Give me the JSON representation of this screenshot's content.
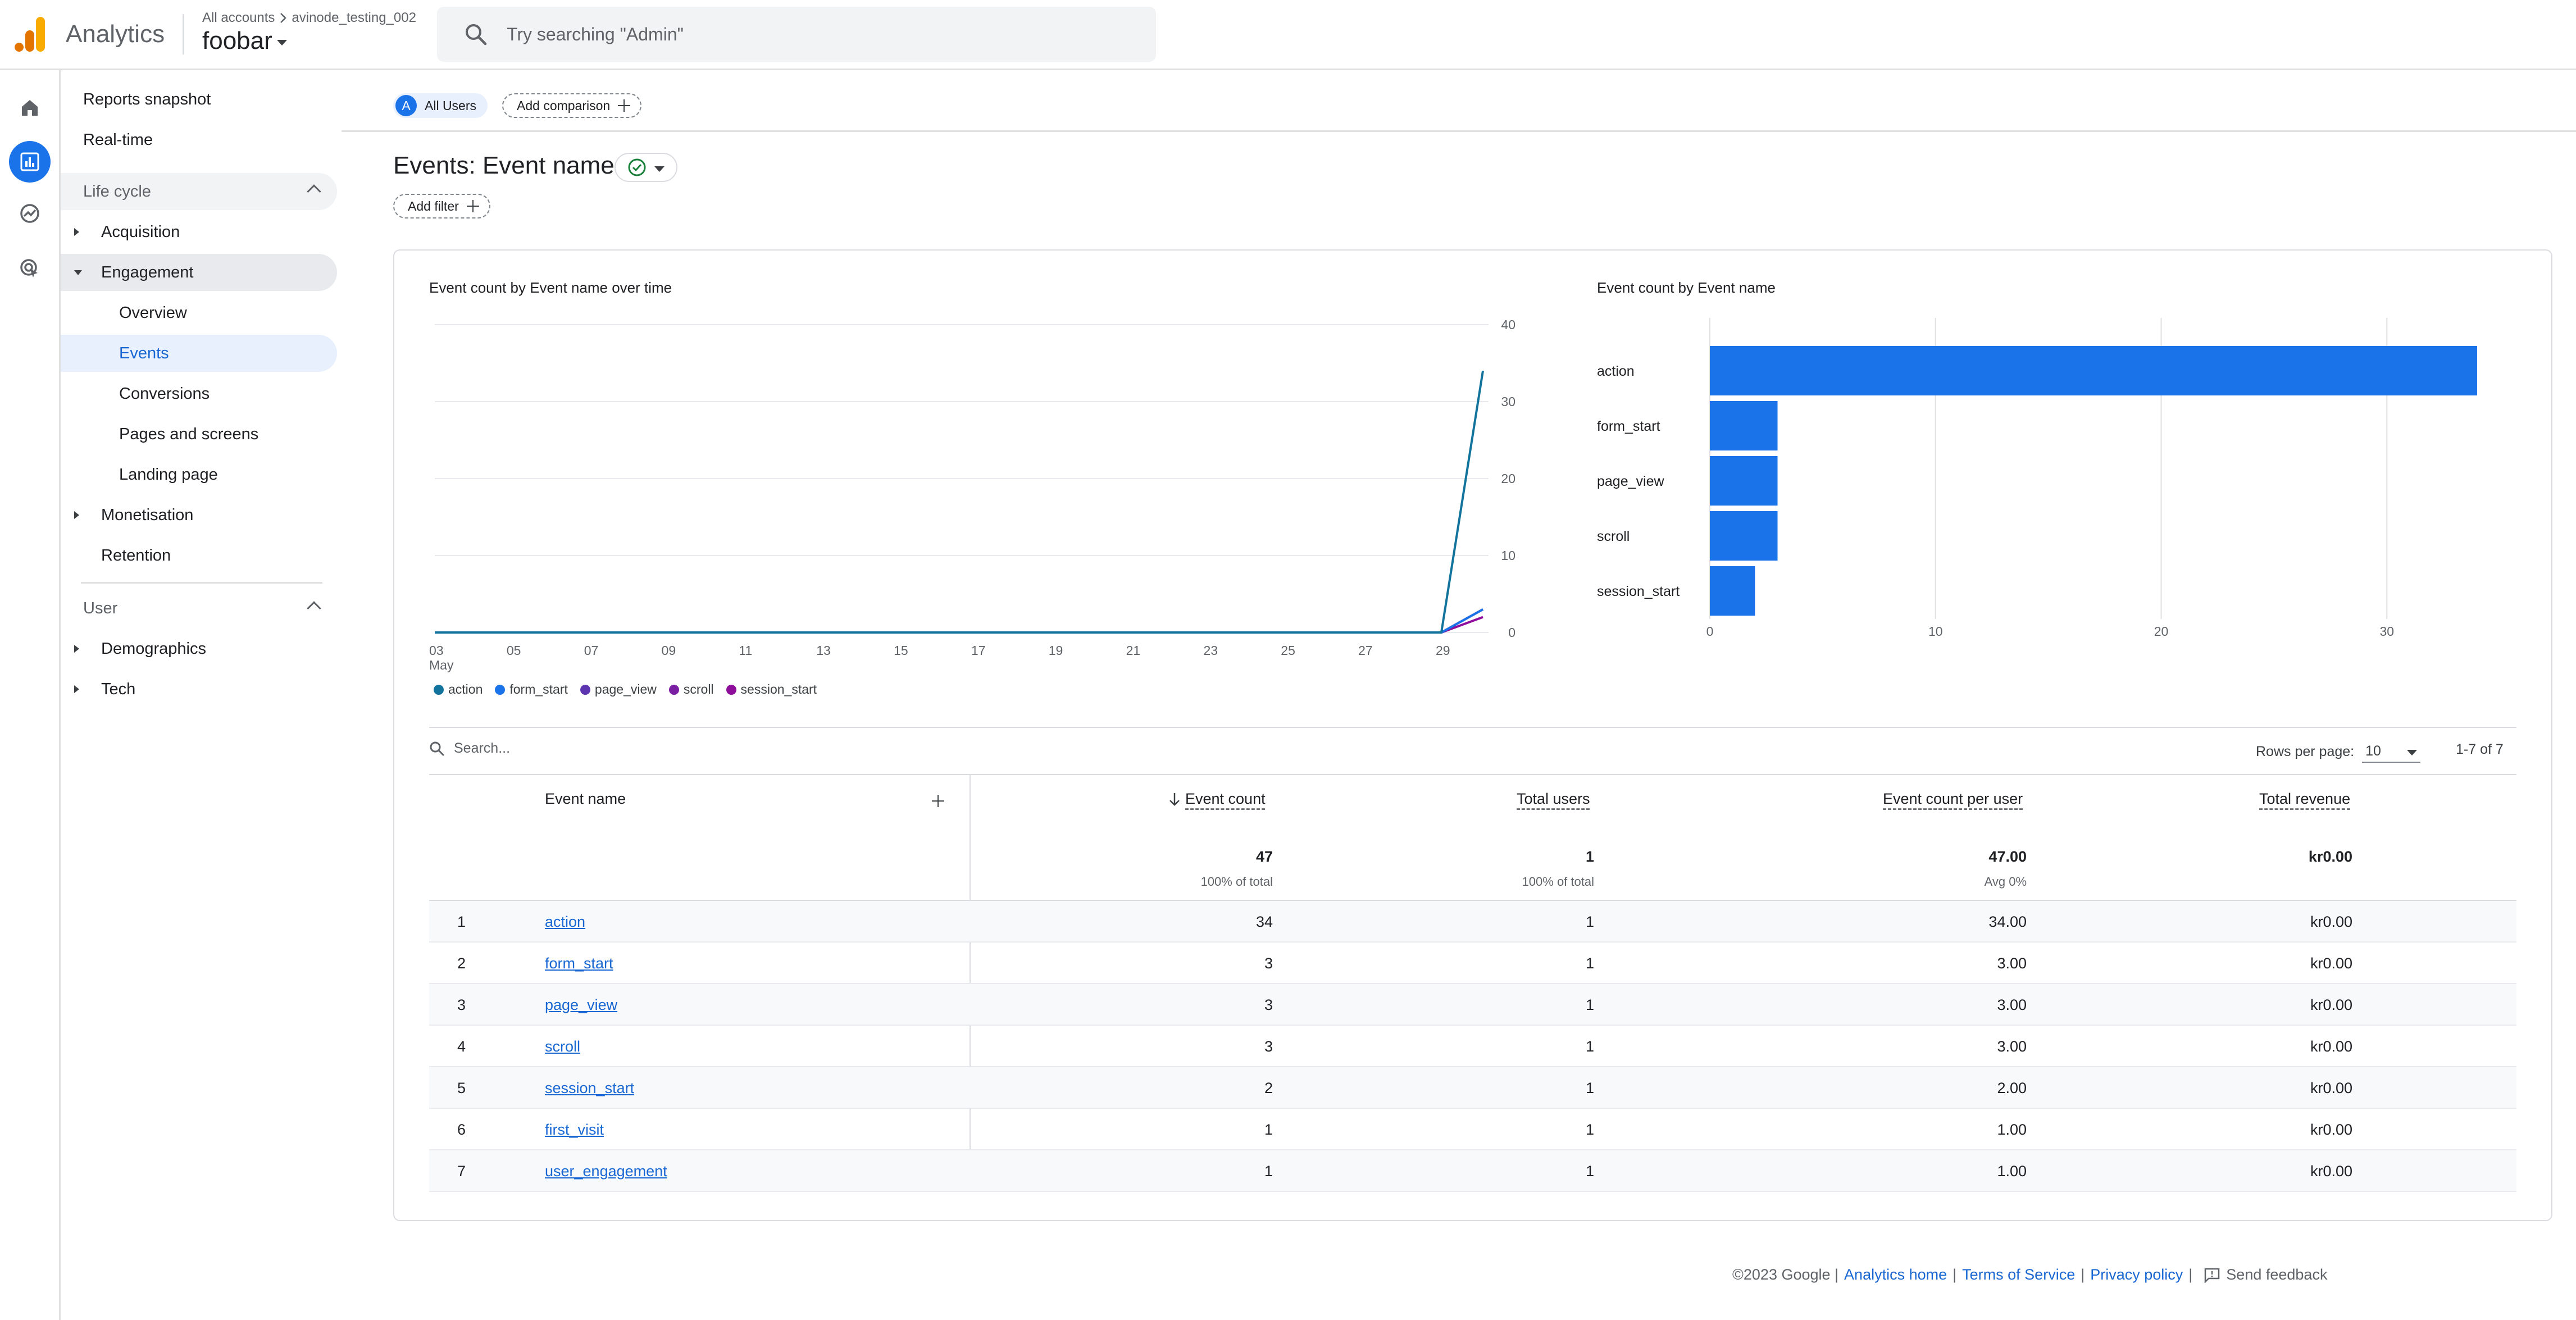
{
  "header": {
    "app_title": "Analytics",
    "crumb_all": "All accounts",
    "crumb_account": "avinode_testing_002",
    "property": "foobar",
    "search_placeholder": "Try searching \"Admin\""
  },
  "rail": [
    "home-icon",
    "reports-icon",
    "explore-icon",
    "advertising-icon"
  ],
  "sidebar": {
    "reports_snapshot": "Reports snapshot",
    "realtime": "Real-time",
    "lifecycle": "Life cycle",
    "acquisition": "Acquisition",
    "engagement": "Engagement",
    "overview": "Overview",
    "events": "Events",
    "conversions": "Conversions",
    "pages_screens": "Pages and screens",
    "landing_page": "Landing page",
    "monetisation": "Monetisation",
    "retention": "Retention",
    "user": "User",
    "demographics": "Demographics",
    "tech": "Tech"
  },
  "comparison": {
    "avatar": "A",
    "all_users": "All Users",
    "add_comparison": "Add comparison"
  },
  "page": {
    "title": "Events: Event name",
    "add_filter": "Add filter"
  },
  "line_chart_title": "Event count by Event name over time",
  "bar_chart_title": "Event count by Event name",
  "chart_data": [
    {
      "type": "line",
      "title": "Event count by Event name over time",
      "x": [
        "03",
        "05",
        "07",
        "09",
        "11",
        "13",
        "15",
        "17",
        "19",
        "21",
        "23",
        "25",
        "27",
        "29"
      ],
      "x_sub": "May",
      "ylim": [
        0,
        40
      ],
      "yticks": [
        0,
        10,
        20,
        30,
        40
      ],
      "series": [
        {
          "name": "action",
          "color": "#12739c",
          "end_value": 34
        },
        {
          "name": "form_start",
          "color": "#1a73e8",
          "end_value": 3
        },
        {
          "name": "page_view",
          "color": "#5e35b1",
          "end_value": 3
        },
        {
          "name": "scroll",
          "color": "#7b1fa2",
          "end_value": 3
        },
        {
          "name": "session_start",
          "color": "#8e0e9b",
          "end_value": 2
        }
      ],
      "grid": true,
      "legend": "bottom-left"
    },
    {
      "type": "bar",
      "orientation": "horizontal",
      "title": "Event count by Event name",
      "categories": [
        "action",
        "form_start",
        "page_view",
        "scroll",
        "session_start"
      ],
      "values": [
        34,
        3,
        3,
        3,
        2
      ],
      "xlim": [
        0,
        34
      ],
      "xticks": [
        0,
        10,
        20,
        30
      ],
      "color": "#1a73e8",
      "grid": true
    }
  ],
  "table": {
    "search_placeholder": "Search...",
    "rows_per_page_label": "Rows per page:",
    "rows_per_page_value": "10",
    "pager": "1-7 of 7",
    "headers": {
      "event_name": "Event name",
      "event_count": "Event count",
      "total_users": "Total users",
      "per_user": "Event count per user",
      "revenue": "Total revenue"
    },
    "totals": {
      "event_count": "47",
      "event_count_sub": "100% of total",
      "total_users": "1",
      "total_users_sub": "100% of total",
      "per_user": "47.00",
      "per_user_sub": "Avg 0%",
      "revenue": "kr0.00"
    },
    "rows": [
      {
        "idx": "1",
        "name": "action",
        "count": "34",
        "users": "1",
        "per_user": "34.00",
        "revenue": "kr0.00"
      },
      {
        "idx": "2",
        "name": "form_start",
        "count": "3",
        "users": "1",
        "per_user": "3.00",
        "revenue": "kr0.00"
      },
      {
        "idx": "3",
        "name": "page_view",
        "count": "3",
        "users": "1",
        "per_user": "3.00",
        "revenue": "kr0.00"
      },
      {
        "idx": "4",
        "name": "scroll",
        "count": "3",
        "users": "1",
        "per_user": "3.00",
        "revenue": "kr0.00"
      },
      {
        "idx": "5",
        "name": "session_start",
        "count": "2",
        "users": "1",
        "per_user": "2.00",
        "revenue": "kr0.00"
      },
      {
        "idx": "6",
        "name": "first_visit",
        "count": "1",
        "users": "1",
        "per_user": "1.00",
        "revenue": "kr0.00"
      },
      {
        "idx": "7",
        "name": "user_engagement",
        "count": "1",
        "users": "1",
        "per_user": "1.00",
        "revenue": "kr0.00"
      }
    ]
  },
  "footer": {
    "copyright": "©2023 Google |",
    "analytics_home": "Analytics home",
    "sep1": "|",
    "terms": "Terms of Service",
    "sep2": "|",
    "privacy": "Privacy policy",
    "sep3": "|",
    "feedback": "Send feedback"
  }
}
